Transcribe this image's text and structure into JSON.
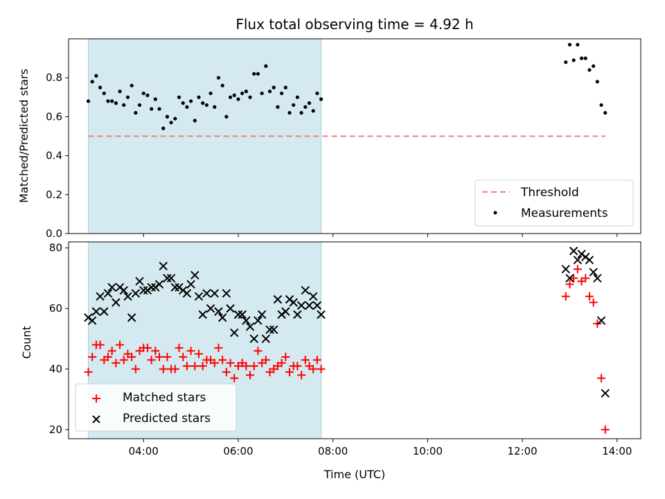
{
  "chart_data": [
    {
      "type": "scatter",
      "title": "Flux total observing time = 4.92 h",
      "ylabel": "Matched/Predicted stars",
      "ylim": [
        0.0,
        1.0
      ],
      "yticks": [
        "0.0",
        "0.2",
        "0.4",
        "0.6",
        "0.8"
      ],
      "yticks_values": [
        0.0,
        0.2,
        0.4,
        0.6,
        0.8
      ],
      "shaded_interval": [
        "02:50",
        "07:45"
      ],
      "shade_color": "#d4e9f0",
      "threshold": {
        "label": "Threshold",
        "value": 0.5,
        "x_range": [
          "02:50",
          "13:45"
        ],
        "color": "#f08080"
      },
      "legend_position": "lower right",
      "series": [
        {
          "name": "Measurements",
          "color": "#000000",
          "marker": "dot",
          "points": [
            [
              "02:50",
              0.68
            ],
            [
              "02:55",
              0.78
            ],
            [
              "03:00",
              0.81
            ],
            [
              "03:05",
              0.75
            ],
            [
              "03:10",
              0.72
            ],
            [
              "03:15",
              0.68
            ],
            [
              "03:20",
              0.68
            ],
            [
              "03:25",
              0.67
            ],
            [
              "03:30",
              0.73
            ],
            [
              "03:35",
              0.66
            ],
            [
              "03:40",
              0.7
            ],
            [
              "03:45",
              0.76
            ],
            [
              "03:50",
              0.62
            ],
            [
              "03:55",
              0.66
            ],
            [
              "04:00",
              0.72
            ],
            [
              "04:05",
              0.71
            ],
            [
              "04:10",
              0.64
            ],
            [
              "04:15",
              0.69
            ],
            [
              "04:20",
              0.64
            ],
            [
              "04:25",
              0.54
            ],
            [
              "04:30",
              0.6
            ],
            [
              "04:35",
              0.57
            ],
            [
              "04:40",
              0.59
            ],
            [
              "04:45",
              0.7
            ],
            [
              "04:50",
              0.67
            ],
            [
              "04:55",
              0.65
            ],
            [
              "05:00",
              0.68
            ],
            [
              "05:05",
              0.58
            ],
            [
              "05:10",
              0.7
            ],
            [
              "05:15",
              0.67
            ],
            [
              "05:20",
              0.66
            ],
            [
              "05:25",
              0.72
            ],
            [
              "05:30",
              0.65
            ],
            [
              "05:35",
              0.8
            ],
            [
              "05:40",
              0.76
            ],
            [
              "05:45",
              0.6
            ],
            [
              "05:50",
              0.7
            ],
            [
              "05:55",
              0.71
            ],
            [
              "06:00",
              0.69
            ],
            [
              "06:05",
              0.72
            ],
            [
              "06:10",
              0.73
            ],
            [
              "06:15",
              0.7
            ],
            [
              "06:20",
              0.82
            ],
            [
              "06:25",
              0.82
            ],
            [
              "06:30",
              0.72
            ],
            [
              "06:35",
              0.86
            ],
            [
              "06:40",
              0.73
            ],
            [
              "06:45",
              0.75
            ],
            [
              "06:50",
              0.65
            ],
            [
              "06:55",
              0.72
            ],
            [
              "07:00",
              0.75
            ],
            [
              "07:05",
              0.62
            ],
            [
              "07:10",
              0.66
            ],
            [
              "07:15",
              0.7
            ],
            [
              "07:20",
              0.62
            ],
            [
              "07:25",
              0.65
            ],
            [
              "07:30",
              0.67
            ],
            [
              "07:35",
              0.63
            ],
            [
              "07:40",
              0.72
            ],
            [
              "07:45",
              0.69
            ],
            [
              "12:55",
              0.88
            ],
            [
              "13:00",
              0.97
            ],
            [
              "13:05",
              0.89
            ],
            [
              "13:10",
              0.97
            ],
            [
              "13:15",
              0.9
            ],
            [
              "13:20",
              0.9
            ],
            [
              "13:25",
              0.84
            ],
            [
              "13:30",
              0.86
            ],
            [
              "13:35",
              0.78
            ],
            [
              "13:40",
              0.66
            ],
            [
              "13:45",
              0.62
            ]
          ]
        }
      ]
    },
    {
      "type": "scatter",
      "xlabel": "Time (UTC)",
      "ylabel": "Count",
      "ylim": [
        17,
        82
      ],
      "yticks": [
        "20",
        "40",
        "60",
        "80"
      ],
      "yticks_values": [
        20,
        40,
        60,
        80
      ],
      "xlim": [
        "02:25",
        "14:30"
      ],
      "xticks": [
        "04:00",
        "06:00",
        "08:00",
        "10:00",
        "12:00",
        "14:00"
      ],
      "shaded_interval": [
        "02:50",
        "07:45"
      ],
      "shade_color": "#d4e9f0",
      "legend_position": "lower left",
      "series": [
        {
          "name": "Matched stars",
          "color": "#ff0000",
          "marker": "plus",
          "points": [
            [
              "02:50",
              39
            ],
            [
              "02:55",
              44
            ],
            [
              "03:00",
              48
            ],
            [
              "03:05",
              48
            ],
            [
              "03:10",
              43
            ],
            [
              "03:15",
              44
            ],
            [
              "03:20",
              46
            ],
            [
              "03:25",
              42
            ],
            [
              "03:30",
              48
            ],
            [
              "03:35",
              43
            ],
            [
              "03:40",
              45
            ],
            [
              "03:45",
              44
            ],
            [
              "03:50",
              40
            ],
            [
              "03:55",
              46
            ],
            [
              "04:00",
              47
            ],
            [
              "04:05",
              47
            ],
            [
              "04:10",
              43
            ],
            [
              "04:15",
              46
            ],
            [
              "04:20",
              44
            ],
            [
              "04:25",
              40
            ],
            [
              "04:30",
              44
            ],
            [
              "04:35",
              40
            ],
            [
              "04:40",
              40
            ],
            [
              "04:45",
              47
            ],
            [
              "04:50",
              44
            ],
            [
              "04:55",
              41
            ],
            [
              "05:00",
              46
            ],
            [
              "05:05",
              41
            ],
            [
              "05:10",
              45
            ],
            [
              "05:15",
              41
            ],
            [
              "05:20",
              43
            ],
            [
              "05:25",
              43
            ],
            [
              "05:30",
              42
            ],
            [
              "05:35",
              47
            ],
            [
              "05:40",
              43
            ],
            [
              "05:45",
              39
            ],
            [
              "05:50",
              42
            ],
            [
              "05:55",
              37
            ],
            [
              "06:00",
              41
            ],
            [
              "06:05",
              42
            ],
            [
              "06:10",
              41
            ],
            [
              "06:15",
              38
            ],
            [
              "06:20",
              41
            ],
            [
              "06:25",
              46
            ],
            [
              "06:30",
              42
            ],
            [
              "06:35",
              43
            ],
            [
              "06:40",
              39
            ],
            [
              "06:45",
              40
            ],
            [
              "06:50",
              41
            ],
            [
              "06:55",
              42
            ],
            [
              "07:00",
              44
            ],
            [
              "07:05",
              39
            ],
            [
              "07:10",
              41
            ],
            [
              "07:15",
              41
            ],
            [
              "07:20",
              38
            ],
            [
              "07:25",
              43
            ],
            [
              "07:30",
              41
            ],
            [
              "07:35",
              40
            ],
            [
              "07:40",
              43
            ],
            [
              "07:45",
              40
            ],
            [
              "12:55",
              64
            ],
            [
              "13:00",
              68
            ],
            [
              "13:05",
              70
            ],
            [
              "13:10",
              73
            ],
            [
              "13:15",
              69
            ],
            [
              "13:20",
              70
            ],
            [
              "13:25",
              64
            ],
            [
              "13:30",
              62
            ],
            [
              "13:35",
              55
            ],
            [
              "13:40",
              37
            ],
            [
              "13:45",
              20
            ]
          ]
        },
        {
          "name": "Predicted stars",
          "color": "#000000",
          "marker": "x",
          "points": [
            [
              "02:50",
              57
            ],
            [
              "02:55",
              56
            ],
            [
              "03:00",
              59
            ],
            [
              "03:05",
              64
            ],
            [
              "03:10",
              59
            ],
            [
              "03:15",
              65
            ],
            [
              "03:20",
              67
            ],
            [
              "03:25",
              62
            ],
            [
              "03:30",
              67
            ],
            [
              "03:35",
              66
            ],
            [
              "03:40",
              64
            ],
            [
              "03:45",
              57
            ],
            [
              "03:50",
              65
            ],
            [
              "03:55",
              69
            ],
            [
              "04:00",
              66
            ],
            [
              "04:05",
              66
            ],
            [
              "04:10",
              67
            ],
            [
              "04:15",
              67
            ],
            [
              "04:20",
              68
            ],
            [
              "04:25",
              74
            ],
            [
              "04:30",
              70
            ],
            [
              "04:35",
              70
            ],
            [
              "04:40",
              67
            ],
            [
              "04:45",
              67
            ],
            [
              "04:50",
              66
            ],
            [
              "04:55",
              65
            ],
            [
              "05:00",
              68
            ],
            [
              "05:05",
              71
            ],
            [
              "05:10",
              64
            ],
            [
              "05:15",
              58
            ],
            [
              "05:20",
              65
            ],
            [
              "05:25",
              60
            ],
            [
              "05:30",
              65
            ],
            [
              "05:35",
              59
            ],
            [
              "05:40",
              57
            ],
            [
              "05:45",
              65
            ],
            [
              "05:50",
              60
            ],
            [
              "05:55",
              52
            ],
            [
              "06:00",
              58
            ],
            [
              "06:05",
              58
            ],
            [
              "06:10",
              56
            ],
            [
              "06:15",
              54
            ],
            [
              "06:20",
              50
            ],
            [
              "06:25",
              56
            ],
            [
              "06:30",
              58
            ],
            [
              "06:35",
              50
            ],
            [
              "06:40",
              53
            ],
            [
              "06:45",
              53
            ],
            [
              "06:50",
              63
            ],
            [
              "06:55",
              58
            ],
            [
              "07:00",
              59
            ],
            [
              "07:05",
              63
            ],
            [
              "07:10",
              62
            ],
            [
              "07:15",
              58
            ],
            [
              "07:20",
              61
            ],
            [
              "07:25",
              66
            ],
            [
              "07:30",
              61
            ],
            [
              "07:35",
              64
            ],
            [
              "07:40",
              61
            ],
            [
              "07:45",
              58
            ],
            [
              "12:55",
              73
            ],
            [
              "13:00",
              70
            ],
            [
              "13:05",
              79
            ],
            [
              "13:10",
              76
            ],
            [
              "13:15",
              78
            ],
            [
              "13:20",
              77
            ],
            [
              "13:25",
              76
            ],
            [
              "13:30",
              72
            ],
            [
              "13:35",
              70
            ],
            [
              "13:40",
              56
            ],
            [
              "13:45",
              32
            ]
          ]
        }
      ]
    }
  ]
}
